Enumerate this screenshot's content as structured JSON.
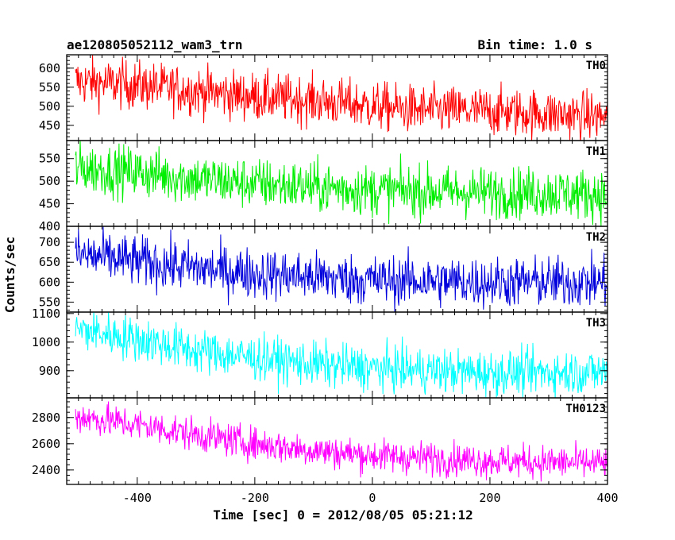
{
  "header": {
    "left": "ae120805052112_wam3_trn",
    "right": "Bin time: 1.0 s"
  },
  "chart_data": {
    "type": "line",
    "title": "ae120805052112_wam3_trn",
    "subtitle": "Bin time: 1.0 s",
    "xlabel": "Time [sec] 0 = 2012/08/05 05:21:12",
    "ylabel": "Counts/sec",
    "xlim": [
      -520,
      400
    ],
    "xticks": [
      -400,
      -200,
      0,
      200,
      400
    ],
    "grid": false,
    "panels": [
      {
        "name": "TH0",
        "color": "#ff0000",
        "ylim": [
          410,
          635
        ],
        "yticks": [
          450,
          500,
          550,
          600
        ],
        "trend": [
          [
            -505,
            565
          ],
          [
            -400,
            555
          ],
          [
            -300,
            540
          ],
          [
            -200,
            525
          ],
          [
            -100,
            515
          ],
          [
            0,
            500
          ],
          [
            80,
            490
          ],
          [
            200,
            487
          ],
          [
            300,
            480
          ],
          [
            400,
            472
          ]
        ],
        "noise": 45
      },
      {
        "name": "TH1",
        "color": "#00ee00",
        "ylim": [
          400,
          590
        ],
        "yticks": [
          400,
          450,
          500,
          550
        ],
        "trend": [
          [
            -505,
            530
          ],
          [
            -400,
            520
          ],
          [
            -300,
            505
          ],
          [
            -200,
            495
          ],
          [
            -100,
            487
          ],
          [
            0,
            480
          ],
          [
            200,
            475
          ],
          [
            300,
            474
          ],
          [
            400,
            470
          ]
        ],
        "noise": 40
      },
      {
        "name": "TH2",
        "color": "#0000dd",
        "ylim": [
          525,
          740
        ],
        "yticks": [
          550,
          600,
          650,
          700
        ],
        "trend": [
          [
            -505,
            670
          ],
          [
            -400,
            652
          ],
          [
            -300,
            635
          ],
          [
            -200,
            622
          ],
          [
            -100,
            613
          ],
          [
            0,
            605
          ],
          [
            200,
            600
          ],
          [
            300,
            600
          ],
          [
            400,
            600
          ]
        ],
        "noise": 45
      },
      {
        "name": "TH3",
        "color": "#00ffff",
        "ylim": [
          805,
          1105
        ],
        "yticks": [
          900,
          1000,
          1100
        ],
        "trend": [
          [
            -505,
            1045
          ],
          [
            -400,
            1010
          ],
          [
            -300,
            970
          ],
          [
            -200,
            945
          ],
          [
            -100,
            922
          ],
          [
            0,
            908
          ],
          [
            200,
            893
          ],
          [
            300,
            895
          ],
          [
            400,
            895
          ]
        ],
        "noise": 55
      },
      {
        "name": "TH0123",
        "color": "#ff00ff",
        "ylim": [
          2290,
          2950
        ],
        "yticks": [
          2400,
          2600,
          2800
        ],
        "trend": [
          [
            -505,
            2810
          ],
          [
            -400,
            2745
          ],
          [
            -300,
            2670
          ],
          [
            -200,
            2600
          ],
          [
            -100,
            2550
          ],
          [
            0,
            2510
          ],
          [
            200,
            2470
          ],
          [
            300,
            2460
          ],
          [
            400,
            2450
          ]
        ],
        "noise": 90
      }
    ]
  }
}
